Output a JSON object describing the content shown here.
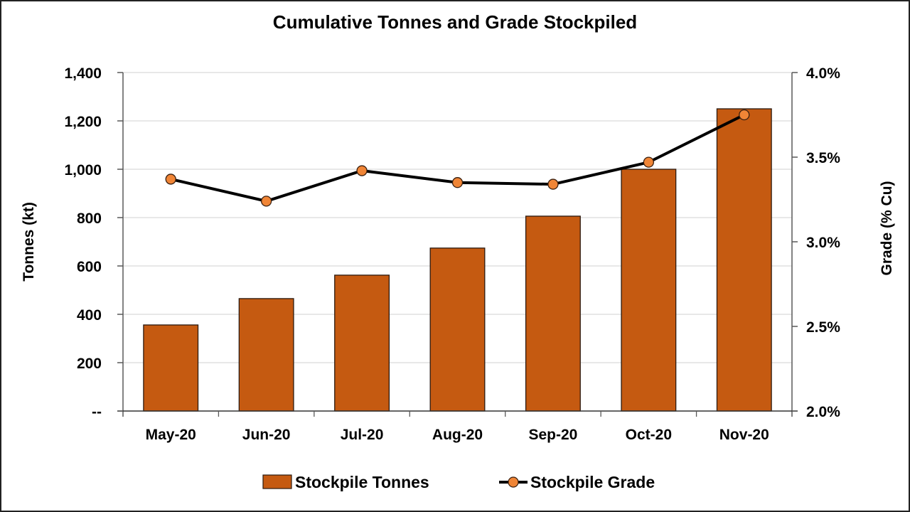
{
  "chart_data": {
    "type": "bar+line",
    "title": "Cumulative Tonnes and Grade Stockpiled",
    "categories": [
      "May-20",
      "Jun-20",
      "Jul-20",
      "Aug-20",
      "Sep-20",
      "Oct-20",
      "Nov-20"
    ],
    "series": [
      {
        "name": "Stockpile Tonnes",
        "type": "bar",
        "axis": "left",
        "values": [
          356,
          465,
          562,
          674,
          806,
          1000,
          1250
        ],
        "color": "#C55A11"
      },
      {
        "name": "Stockpile Grade",
        "type": "line",
        "axis": "right",
        "values": [
          3.37,
          3.24,
          3.42,
          3.35,
          3.34,
          3.47,
          3.75
        ],
        "line_color": "#000000",
        "marker_color": "#F08536"
      }
    ],
    "y_left": {
      "label": "Tonnes (kt)",
      "range": [
        0,
        1400
      ],
      "ticks": [
        0,
        200,
        400,
        600,
        800,
        1000,
        1200,
        1400
      ],
      "tick_labels": [
        "--",
        "200",
        "400",
        "600",
        "800",
        "1,000",
        "1,200",
        "1,400"
      ]
    },
    "y_right": {
      "label": "Grade (% Cu)",
      "range": [
        2.0,
        4.0
      ],
      "ticks": [
        2.0,
        2.5,
        3.0,
        3.5,
        4.0
      ],
      "tick_labels": [
        "2.0%",
        "2.5%",
        "3.0%",
        "3.5%",
        "4.0%"
      ]
    },
    "grid": true,
    "legend": {
      "position": "bottom",
      "entries": [
        "Stockpile Tonnes",
        "Stockpile Grade"
      ]
    }
  }
}
